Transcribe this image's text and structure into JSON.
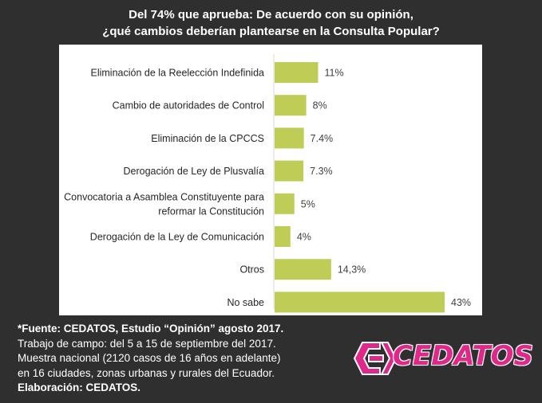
{
  "title": {
    "line1": "Del 74% que aprueba: De acuerdo con su opinión,",
    "line2": "¿qué cambios deberían plantearse en la Consulta Popular?"
  },
  "chart_data": {
    "type": "bar",
    "orientation": "horizontal",
    "categories": [
      [
        "Eliminación de la Reelección Indefinida"
      ],
      [
        "Cambio de autoridades de Control"
      ],
      [
        "Eliminación de la CPCCS"
      ],
      [
        "Derogación de Ley de Plusvalía"
      ],
      [
        "Convocatoria a Asamblea Constituyente para",
        "reformar la Constitución"
      ],
      [
        "Derogación de la Ley de Comunicación"
      ],
      [
        "Otros"
      ],
      [
        "No sabe"
      ]
    ],
    "values": [
      11,
      8,
      7.4,
      7.3,
      5,
      4,
      14.3,
      43
    ],
    "data_labels": [
      "11%",
      "8%",
      "7.4%",
      "7.3%",
      "5%",
      "4%",
      "14,3%",
      "43%"
    ],
    "bar_color": "#bfcc55",
    "xlim": [
      0,
      43
    ],
    "grid": false,
    "legend": "none"
  },
  "footer": {
    "source": "*Fuente: CEDATOS, Estudio “Opinión” agosto 2017.",
    "fieldwork": "Trabajo de campo: del 5 a 15 de septiembre del 2017.",
    "sample1": "Muestra nacional (2120 casos de 16 años en adelante)",
    "sample2": "en 16 ciudades, zonas urbanas y rurales del Ecuador.",
    "credit": "Elaboración: CEDATOS."
  },
  "logo": {
    "text": "CEDATOS",
    "color": "#e0278a"
  }
}
